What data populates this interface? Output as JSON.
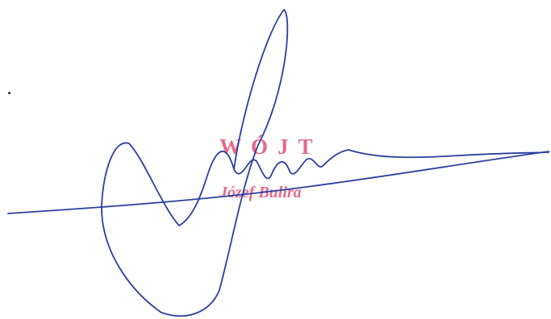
{
  "stamp": {
    "title": "WÓJT",
    "name": "Józef Bulira",
    "color": "#e0567e"
  },
  "signature": {
    "color": "#2a3f9e"
  }
}
